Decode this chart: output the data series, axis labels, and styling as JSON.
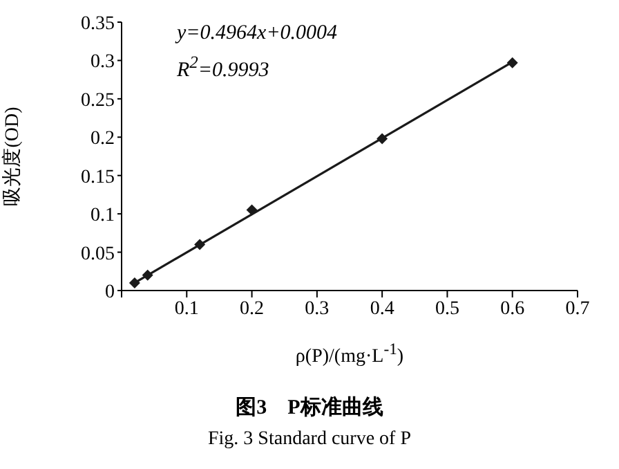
{
  "chart_data": {
    "type": "scatter",
    "title": "图3　P标准曲线",
    "subtitle": "Fig. 3 Standard curve of P",
    "xlabel": "ρ(P)/(mg·L$^{-1}$)",
    "ylabel": "吸光度(OD)",
    "annotations": [
      "y=0.4964x+0.0004",
      "R$^{2}$=0.9993"
    ],
    "series": [
      {
        "color": "#1a1a1a",
        "marker": "diamond",
        "x": [
          0.02,
          0.04,
          0.12,
          0.2,
          0.4,
          0.6
        ],
        "values": [
          0.01,
          0.02,
          0.06,
          0.105,
          0.198,
          0.297
        ]
      },
      {
        "type": "line",
        "color": "#1a1a1a",
        "marker": "none",
        "line_style": "solid",
        "x": [
          0.02,
          0.6
        ],
        "values": [
          0.01,
          0.298
        ]
      }
    ],
    "xlim": [
      0,
      0.7
    ],
    "xticks": [
      {
        "value": 0,
        "label": null
      },
      0.1,
      0.2,
      0.3,
      0.4,
      0.5,
      0.6,
      0.7
    ],
    "ylim": [
      0,
      0.35
    ],
    "yticks": [
      0,
      0.05,
      0.1,
      0.15,
      0.2,
      0.25,
      0.3,
      0.35
    ],
    "grid": false,
    "legend": false
  }
}
